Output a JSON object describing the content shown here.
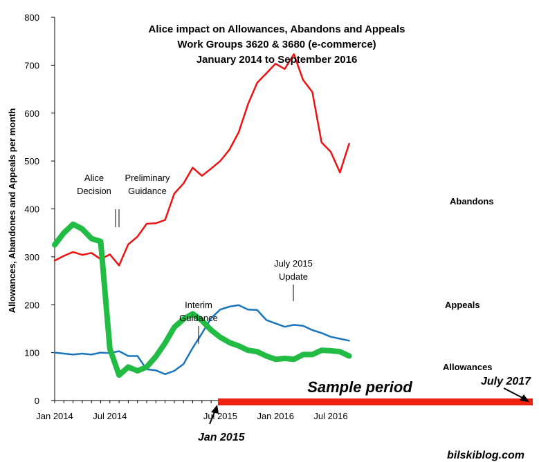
{
  "chart_data": {
    "type": "line",
    "title_lines": [
      "Alice impact on Allowances, Abandons and Appeals",
      "Work Groups 3620 & 3680 (e-commerce)",
      "January 2014 to September 2016"
    ],
    "ylabel": "Allowances, Abandones and Appeals per month",
    "ylim": [
      0,
      800
    ],
    "yticks": [
      0,
      100,
      200,
      300,
      400,
      500,
      600,
      700,
      800
    ],
    "x_tick_labels": [
      "Jan 2014",
      "Jul 2014",
      "Jan 2015",
      "Jul 2015",
      "Jan 2016",
      "Jul 2016"
    ],
    "x_tick_index": [
      0,
      6,
      12,
      18,
      24,
      30
    ],
    "grid": false,
    "series": [
      {
        "name": "Abandons",
        "color": "#ee1111",
        "width": "thin",
        "values": [
          292,
          302,
          310,
          304,
          308,
          295,
          305,
          282,
          326,
          342,
          369,
          370,
          377,
          432,
          453,
          486,
          469,
          484,
          500,
          524,
          560,
          618,
          663,
          683,
          703,
          692,
          723,
          669,
          644,
          539,
          519,
          476,
          536
        ]
      },
      {
        "name": "Appeals",
        "color": "#1a75bc",
        "width": "medium",
        "values": [
          100,
          98,
          96,
          98,
          96,
          100,
          99,
          103,
          93,
          93,
          65,
          63,
          55,
          62,
          76,
          110,
          140,
          172,
          190,
          196,
          199,
          190,
          189,
          168,
          161,
          154,
          158,
          156,
          147,
          141,
          133,
          129,
          125
        ]
      },
      {
        "name": "Allowances",
        "color": "#22bb44",
        "width": "thick",
        "values": [
          325,
          350,
          368,
          358,
          338,
          332,
          108,
          53,
          70,
          62,
          70,
          92,
          120,
          153,
          170,
          181,
          167,
          147,
          132,
          121,
          114,
          105,
          102,
          93,
          86,
          88,
          86,
          96,
          96,
          105,
          104,
          102,
          93
        ]
      }
    ],
    "annotations": {
      "alice_decision": [
        "Alice",
        "Decision"
      ],
      "preliminary_guidance": [
        "Preliminary",
        "Guidance"
      ],
      "interim_guidance": [
        "Interim",
        "Guidance"
      ],
      "july_2015_update": [
        "July 2015",
        "Update"
      ]
    },
    "sample_period": {
      "label": "Sample period",
      "start_label": "Jan 2015",
      "end_label": "July 2017",
      "color": "#ee2211"
    },
    "credit": "bilskiblog.com"
  }
}
